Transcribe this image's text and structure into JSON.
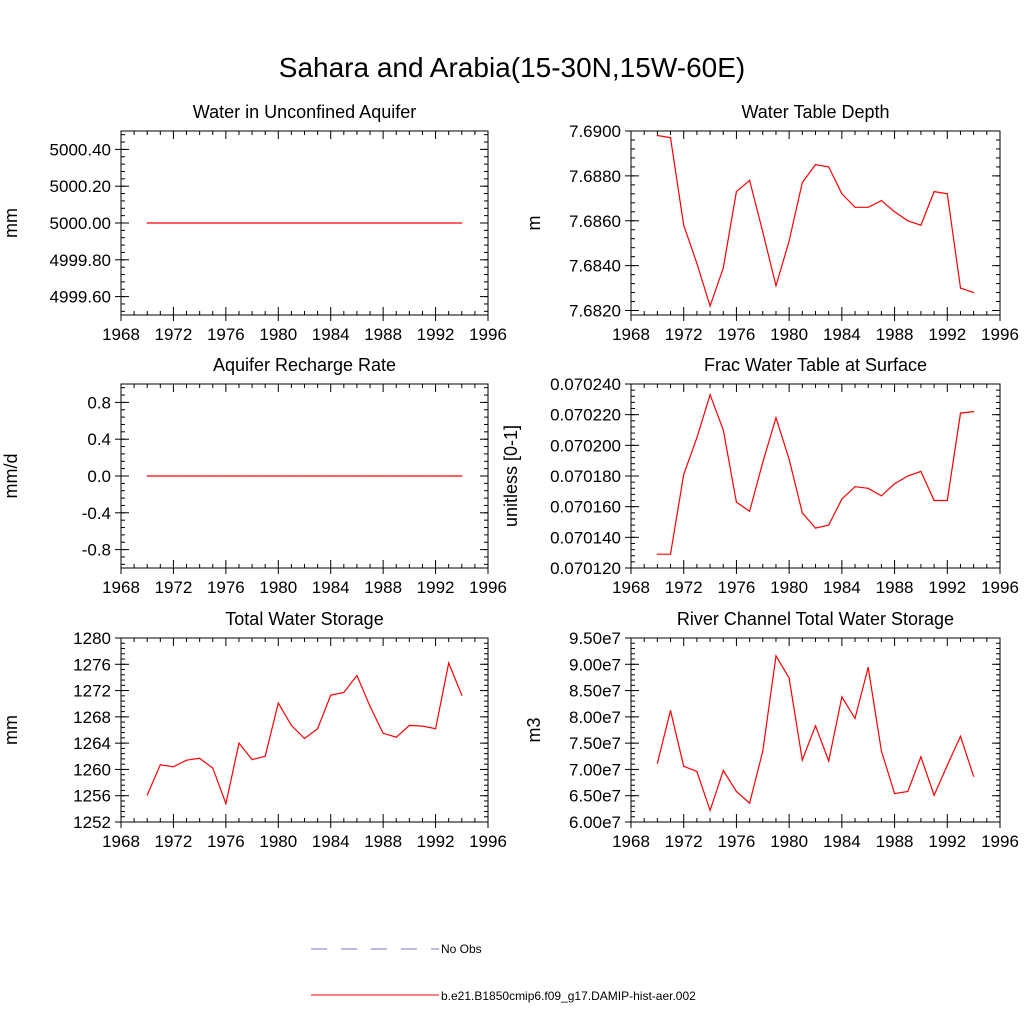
{
  "title": "Sahara and Arabia(15-30N,15W-60E)",
  "colors": {
    "model_line": "#ff0000",
    "obs_line": "#7777cc",
    "axes": "#000000"
  },
  "legend": {
    "obs_label": "No Obs",
    "model_label": "b.e21.B1850cmip6.f09_g17.DAMIP-hist-aer.002"
  },
  "chart_data": [
    {
      "type": "line",
      "title": "Water in Unconfined Aquifer",
      "xlabel": "",
      "ylabel": "mm",
      "xlim": [
        1968,
        1996
      ],
      "ylim": [
        4999.5,
        5000.5
      ],
      "xticks": [
        1968,
        1972,
        1976,
        1980,
        1984,
        1988,
        1992,
        1996
      ],
      "yticks": [
        4999.6,
        4999.8,
        5000.0,
        5000.2,
        5000.4
      ],
      "ytick_labels": [
        "4999.60",
        "4999.80",
        "5000.00",
        "5000.20",
        "5000.40"
      ],
      "grid": false,
      "x": [
        1970,
        1971,
        1972,
        1973,
        1974,
        1975,
        1976,
        1977,
        1978,
        1979,
        1980,
        1981,
        1982,
        1983,
        1984,
        1985,
        1986,
        1987,
        1988,
        1989,
        1990,
        1991,
        1992,
        1993,
        1994
      ],
      "values": [
        5000.0,
        5000.0,
        5000.0,
        5000.0,
        5000.0,
        5000.0,
        5000.0,
        5000.0,
        5000.0,
        5000.0,
        5000.0,
        5000.0,
        5000.0,
        5000.0,
        5000.0,
        5000.0,
        5000.0,
        5000.0,
        5000.0,
        5000.0,
        5000.0,
        5000.0,
        5000.0,
        5000.0,
        5000.0
      ]
    },
    {
      "type": "line",
      "title": "Water Table Depth",
      "xlabel": "",
      "ylabel": "m",
      "xlim": [
        1968,
        1996
      ],
      "ylim": [
        7.6818,
        7.69
      ],
      "xticks": [
        1968,
        1972,
        1976,
        1980,
        1984,
        1988,
        1992,
        1996
      ],
      "yticks": [
        7.682,
        7.684,
        7.686,
        7.688,
        7.69
      ],
      "ytick_labels": [
        "7.6820",
        "7.6840",
        "7.6860",
        "7.6880",
        "7.6900"
      ],
      "grid": false,
      "x": [
        1970,
        1971,
        1972,
        1973,
        1974,
        1975,
        1976,
        1977,
        1978,
        1979,
        1980,
        1981,
        1982,
        1983,
        1984,
        1985,
        1986,
        1987,
        1988,
        1989,
        1990,
        1991,
        1992,
        1993,
        1994
      ],
      "values": [
        7.6898,
        7.6897,
        7.6858,
        7.6841,
        7.6822,
        7.6839,
        7.6873,
        7.6878,
        7.6855,
        7.6831,
        7.6851,
        7.6877,
        7.6885,
        7.6884,
        7.6872,
        7.6866,
        7.6866,
        7.6869,
        7.6864,
        7.686,
        7.6858,
        7.6873,
        7.6872,
        7.683,
        7.6828
      ]
    },
    {
      "type": "line",
      "title": "Aquifer Recharge Rate",
      "xlabel": "",
      "ylabel": "mm/d",
      "xlim": [
        1968,
        1996
      ],
      "ylim": [
        -1.0,
        1.0
      ],
      "xticks": [
        1968,
        1972,
        1976,
        1980,
        1984,
        1988,
        1992,
        1996
      ],
      "yticks": [
        -0.8,
        -0.4,
        0.0,
        0.4,
        0.8
      ],
      "ytick_labels": [
        "-0.8",
        "-0.4",
        "0.0",
        "0.4",
        "0.8"
      ],
      "grid": false,
      "x": [
        1970,
        1971,
        1972,
        1973,
        1974,
        1975,
        1976,
        1977,
        1978,
        1979,
        1980,
        1981,
        1982,
        1983,
        1984,
        1985,
        1986,
        1987,
        1988,
        1989,
        1990,
        1991,
        1992,
        1993,
        1994
      ],
      "values": [
        0.0,
        0.0,
        0.0,
        0.0,
        0.0,
        0.0,
        0.0,
        0.0,
        0.0,
        0.0,
        0.0,
        0.0,
        0.0,
        0.0,
        0.0,
        0.0,
        0.0,
        0.0,
        0.0,
        0.0,
        0.0,
        0.0,
        0.0,
        0.0,
        0.0
      ]
    },
    {
      "type": "line",
      "title": "Frac Water Table at Surface",
      "xlabel": "",
      "ylabel": "unitless [0-1]",
      "xlim": [
        1968,
        1996
      ],
      "ylim": [
        0.07012,
        0.07024
      ],
      "xticks": [
        1968,
        1972,
        1976,
        1980,
        1984,
        1988,
        1992,
        1996
      ],
      "yticks": [
        0.07012,
        0.07014,
        0.07016,
        0.07018,
        0.0702,
        0.07022,
        0.07024
      ],
      "ytick_labels": [
        "0.070120",
        "0.070140",
        "0.070160",
        "0.070180",
        "0.070200",
        "0.070220",
        "0.070240"
      ],
      "grid": false,
      "x": [
        1970,
        1971,
        1972,
        1973,
        1974,
        1975,
        1976,
        1977,
        1978,
        1979,
        1980,
        1981,
        1982,
        1983,
        1984,
        1985,
        1986,
        1987,
        1988,
        1989,
        1990,
        1991,
        1992,
        1993,
        1994
      ],
      "values": [
        0.070129,
        0.070129,
        0.070181,
        0.070205,
        0.070233,
        0.07021,
        0.070163,
        0.070157,
        0.070189,
        0.070218,
        0.070191,
        0.070156,
        0.070146,
        0.070148,
        0.070165,
        0.070173,
        0.070172,
        0.070167,
        0.070175,
        0.07018,
        0.070183,
        0.070164,
        0.070164,
        0.070221,
        0.070222
      ]
    },
    {
      "type": "line",
      "title": "Total Water Storage",
      "xlabel": "",
      "ylabel": "mm",
      "xlim": [
        1968,
        1996
      ],
      "ylim": [
        1252,
        1280
      ],
      "xticks": [
        1968,
        1972,
        1976,
        1980,
        1984,
        1988,
        1992,
        1996
      ],
      "yticks": [
        1252,
        1256,
        1260,
        1264,
        1268,
        1272,
        1276,
        1280
      ],
      "ytick_labels": [
        "1252",
        "1256",
        "1260",
        "1264",
        "1268",
        "1272",
        "1276",
        "1280"
      ],
      "grid": false,
      "x": [
        1970,
        1971,
        1972,
        1973,
        1974,
        1975,
        1976,
        1977,
        1978,
        1979,
        1980,
        1981,
        1982,
        1983,
        1984,
        1985,
        1986,
        1987,
        1988,
        1989,
        1990,
        1991,
        1992,
        1993,
        1994
      ],
      "values": [
        1256.1,
        1260.7,
        1260.4,
        1261.4,
        1261.7,
        1260.2,
        1254.8,
        1264.0,
        1261.5,
        1262.0,
        1270.1,
        1266.7,
        1264.7,
        1266.2,
        1271.3,
        1271.7,
        1274.3,
        1269.6,
        1265.5,
        1264.9,
        1266.7,
        1266.6,
        1266.2,
        1276.2,
        1271.3
      ]
    },
    {
      "type": "line",
      "title": "River Channel Total Water Storage",
      "xlabel": "",
      "ylabel": "m3",
      "xlim": [
        1968,
        1996
      ],
      "ylim": [
        60000000,
        95000000
      ],
      "xticks": [
        1968,
        1972,
        1976,
        1980,
        1984,
        1988,
        1992,
        1996
      ],
      "yticks": [
        60000000,
        65000000,
        70000000,
        75000000,
        80000000,
        85000000,
        90000000,
        95000000
      ],
      "ytick_labels": [
        "6.00e7",
        "6.50e7",
        "7.00e7",
        "7.50e7",
        "8.00e7",
        "8.50e7",
        "9.00e7",
        "9.50e7"
      ],
      "grid": false,
      "x": [
        1970,
        1971,
        1972,
        1973,
        1974,
        1975,
        1976,
        1977,
        1978,
        1979,
        1980,
        1981,
        1982,
        1983,
        1984,
        1985,
        1986,
        1987,
        1988,
        1989,
        1990,
        1991,
        1992,
        1993,
        1994
      ],
      "values": [
        71200000,
        81200000,
        70600000,
        69600000,
        62200000,
        69800000,
        65800000,
        63600000,
        73500000,
        91600000,
        87400000,
        71800000,
        78300000,
        71600000,
        83800000,
        79700000,
        89400000,
        73500000,
        65400000,
        65800000,
        72400000,
        65100000,
        70800000,
        76300000,
        68700000
      ]
    }
  ]
}
